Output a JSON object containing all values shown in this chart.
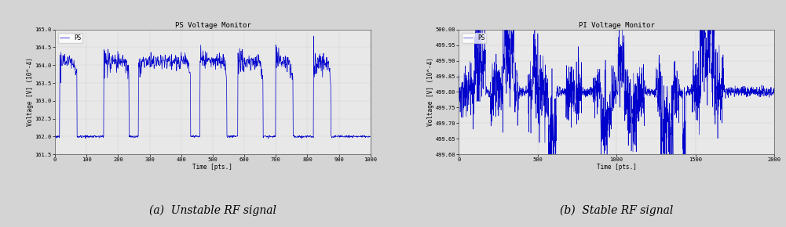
{
  "title_left": "PS Voltage Monitor",
  "title_right": "PI Voltage Monitor",
  "xlabel_left": "Time [pts.]",
  "xlabel_right": "Time [pts.]",
  "ylabel_left": "Voltage [V] (10^-4)",
  "ylabel_right": "Voltage [V] (10^-4)",
  "legend_left": "PS",
  "legend_right": "PS",
  "xlim_left": [
    0,
    1000
  ],
  "xlim_right": [
    0,
    2000
  ],
  "ylim_left": [
    161.5,
    165.0
  ],
  "ylim_right": [
    499.6,
    500.0
  ],
  "yticks_left": [
    161.5,
    162.0,
    162.5,
    163.0,
    163.5,
    164.0,
    164.5,
    165.0
  ],
  "yticks_right": [
    499.6,
    499.65,
    499.7,
    499.75,
    499.8,
    499.85,
    499.9,
    499.95,
    500.0
  ],
  "xticks_left": [
    0,
    100,
    200,
    300,
    400,
    500,
    600,
    700,
    800,
    900,
    1000
  ],
  "xticks_right": [
    0,
    500,
    1000,
    1500,
    2000
  ],
  "line_color": "#0000cc",
  "grid_color": "#aaaaaa",
  "plot_bg_color": "#e8e8e8",
  "fig_bg_color": "#d4d4d4",
  "caption_left": "(a)  Unstable RF signal",
  "caption_right": "(b)  Stable RF signal",
  "caption_fontsize": 10,
  "title_fontsize": 6.5,
  "label_fontsize": 5.5,
  "tick_fontsize": 5.0,
  "legend_fontsize": 5.5
}
